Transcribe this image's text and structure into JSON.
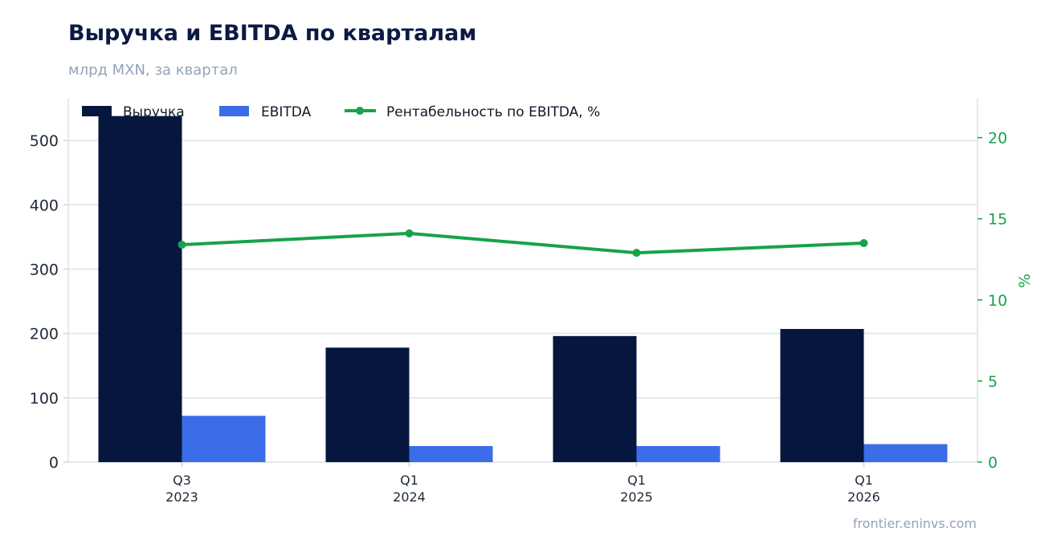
{
  "header": {
    "title": "Выручка и EBITDA по кварталам",
    "subtitle": "млрд MXN, за квартал"
  },
  "footer": {
    "source": "frontier.eninvs.com"
  },
  "colors": {
    "revenue": "#06163f",
    "ebitda": "#3b6de8",
    "margin": "#16a34a",
    "grid": "#e5e9ef",
    "axis_text": "#1f2937",
    "right_axis_text": "#16a34a"
  },
  "chart_data": {
    "type": "bar",
    "categories": [
      [
        "Q3",
        "2023"
      ],
      [
        "Q1",
        "2024"
      ],
      [
        "Q1",
        "2025"
      ],
      [
        "Q1",
        "2026"
      ]
    ],
    "series": [
      {
        "name": "Выручка",
        "type": "bar",
        "axis": "left",
        "values": [
          538,
          178,
          196,
          207
        ]
      },
      {
        "name": "EBITDA",
        "type": "bar",
        "axis": "left",
        "values": [
          72,
          25,
          25,
          28
        ]
      },
      {
        "name": "Рентабельность по EBITDA, %",
        "type": "line",
        "axis": "right",
        "values": [
          13.4,
          14.1,
          12.9,
          13.5
        ]
      }
    ],
    "y_left": {
      "ticks": [
        0,
        100,
        200,
        300,
        400,
        500
      ],
      "ylim": [
        0,
        565
      ],
      "label": ""
    },
    "y_right": {
      "ticks": [
        0,
        5,
        10,
        15,
        20
      ],
      "ylim": [
        0,
        22.4
      ],
      "label": "%"
    },
    "grid": true,
    "legend": "top-left"
  }
}
